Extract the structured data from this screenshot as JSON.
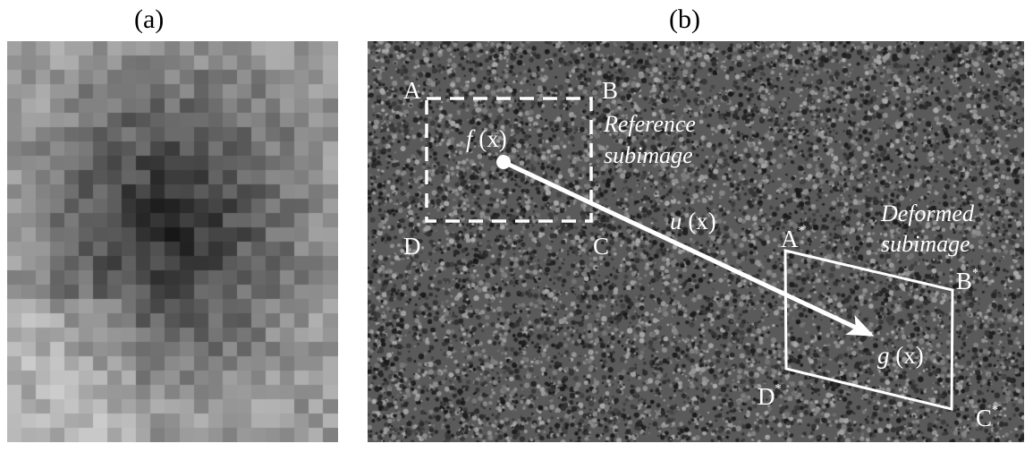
{
  "panel_a": {
    "label": "(a)"
  },
  "panel_b": {
    "label": "(b)",
    "corners_reference": {
      "a": "A",
      "b": "B",
      "c": "C",
      "d": "D"
    },
    "corners_deformed": {
      "a": "A",
      "b": "B",
      "c": "C",
      "d": "D",
      "mark": "*"
    },
    "f_func": "f",
    "f_arg": " (x)",
    "u_func": "u",
    "u_arg": " (x)",
    "g_func": "g",
    "g_arg": " (x)",
    "reference_caption": [
      "Reference",
      "subimage"
    ],
    "deformed_caption": [
      "Deformed",
      "subimage"
    ]
  },
  "colors": {
    "overlay": "#ffffff",
    "speckle_background": "#5a5a5a"
  }
}
